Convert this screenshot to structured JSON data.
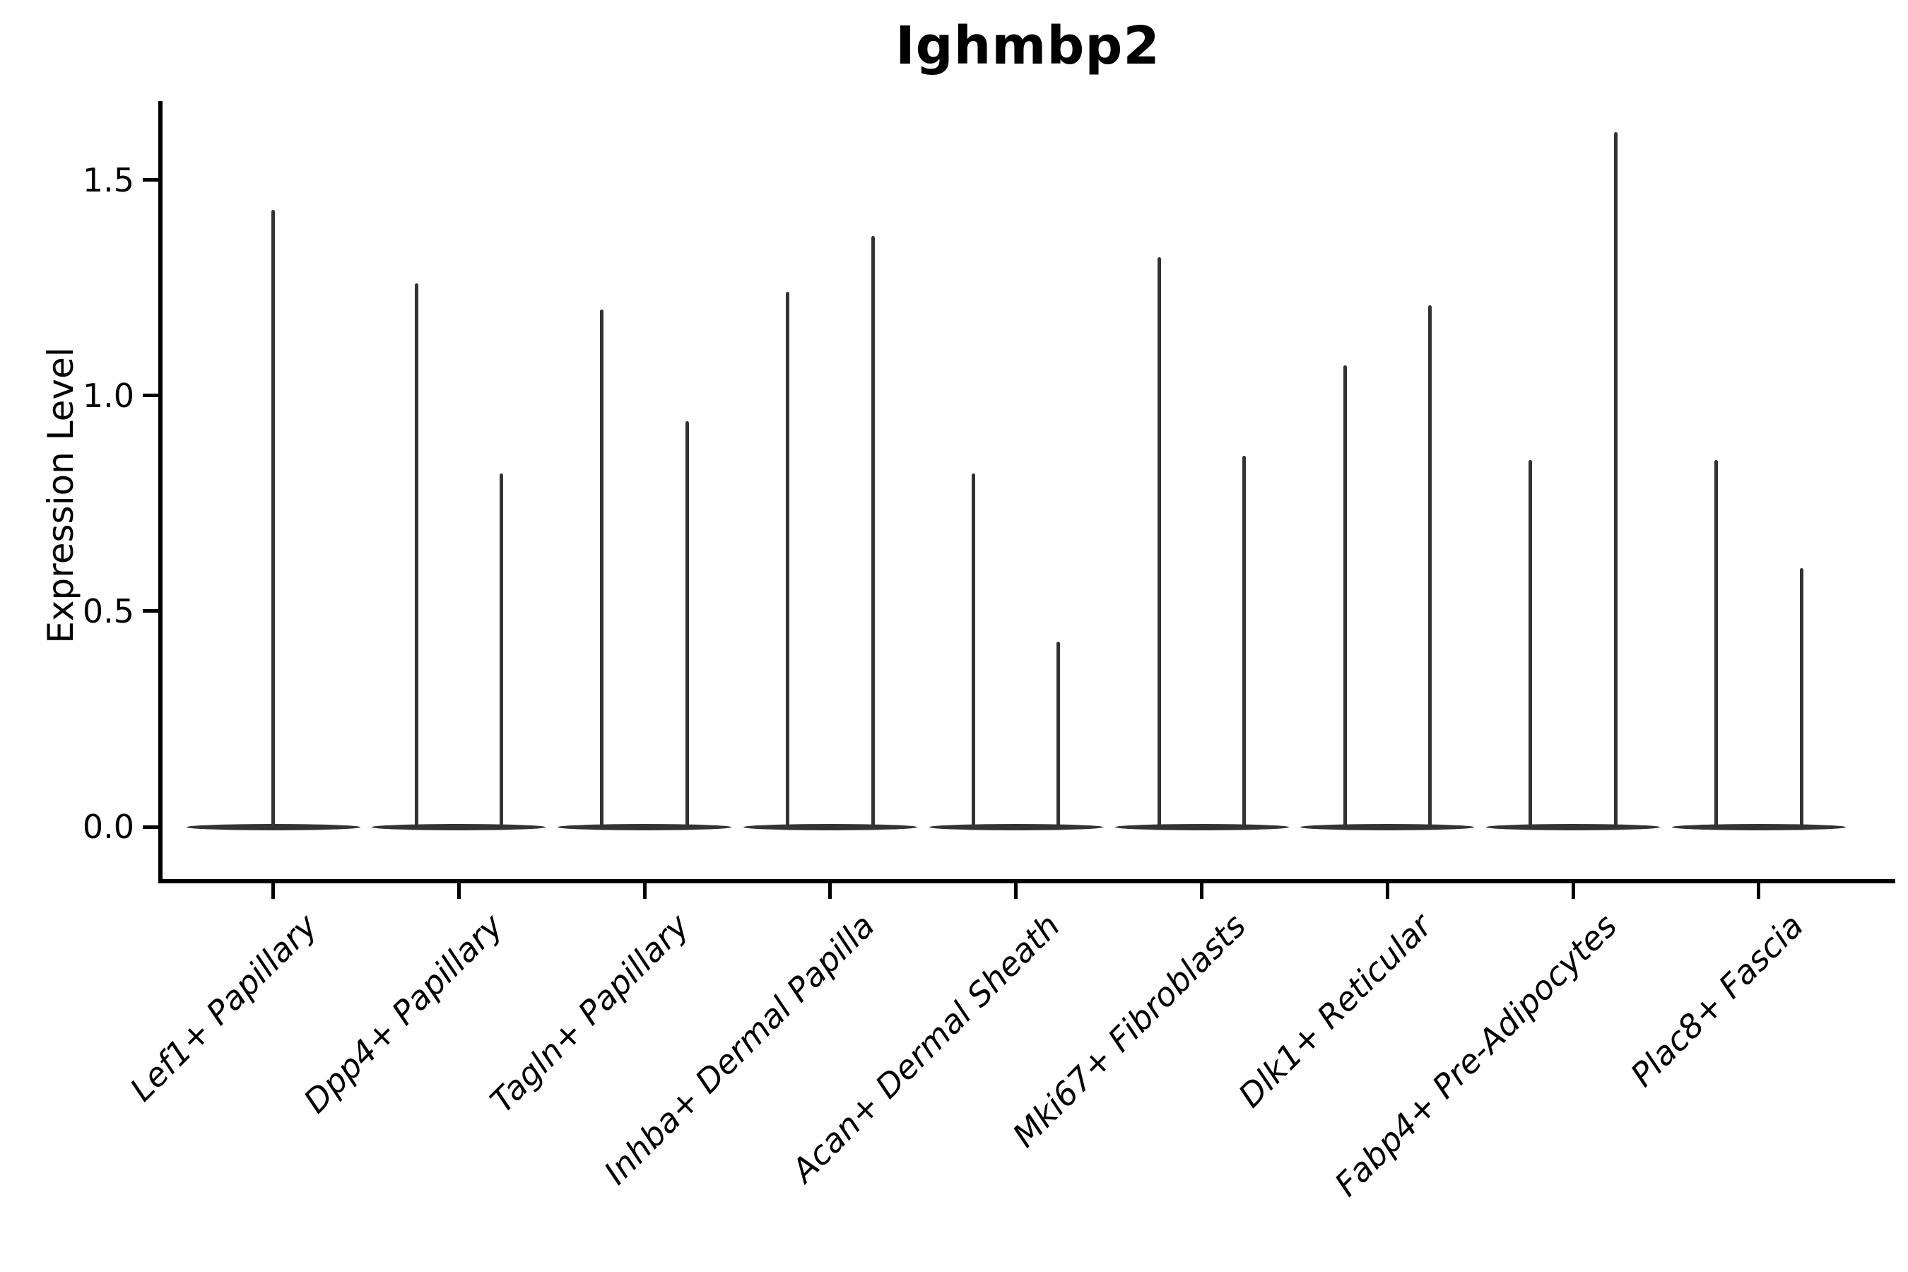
{
  "figure": {
    "title": "Ighmbp2"
  },
  "y_axis": {
    "label": "Expression Level",
    "tick_labels": [
      "0.0",
      "0.5",
      "1.0",
      "1.5"
    ]
  },
  "x_axis": {
    "tick_labels": [
      "Lef1+ Papillary",
      "Dpp4+ Papillary",
      "Tagln+ Papillary",
      "Inhba+ Dermal Papilla",
      "Acan+ Dermal Sheath",
      "Mki67+ Fibroblasts",
      "Dlk1+ Reticular",
      "Fabp4+ Pre-Adipocytes",
      "Plac8+ Fascia"
    ]
  },
  "chart_data": {
    "type": "violin",
    "title": "Ighmbp2",
    "xlabel": "",
    "ylabel": "Expression Level",
    "ylim": [
      0,
      1.69
    ],
    "yticks": [
      0.0,
      0.5,
      1.0,
      1.5
    ],
    "x_tick_rotation_deg": 45,
    "grid": false,
    "legend": "none",
    "style_note": "Seurat/scanpy-style gene expression violin plot: nearly all density concentrated at 0 giving a wide flat base at y=0, with extremely thin spikes rising to the maximum expression value of each violin",
    "categories": [
      "Lef1+ Papillary",
      "Dpp4+ Papillary",
      "Tagln+ Papillary",
      "Inhba+ Dermal Papilla",
      "Acan+ Dermal Sheath",
      "Mki67+ Fibroblasts",
      "Dlk1+ Reticular",
      "Fabp4+ Pre-Adipocytes",
      "Plac8+ Fascia"
    ],
    "series": [
      {
        "category": "Lef1+ Papillary",
        "violins": [
          {
            "position": "center",
            "mode": 0.0,
            "max_expression": 1.43
          }
        ]
      },
      {
        "category": "Dpp4+ Papillary",
        "violins": [
          {
            "position": "left",
            "mode": 0.0,
            "max_expression": 1.26
          },
          {
            "position": "right",
            "mode": 0.0,
            "max_expression": 0.82
          }
        ]
      },
      {
        "category": "Tagln+ Papillary",
        "violins": [
          {
            "position": "left",
            "mode": 0.0,
            "max_expression": 1.2
          },
          {
            "position": "right",
            "mode": 0.0,
            "max_expression": 0.94
          }
        ]
      },
      {
        "category": "Inhba+ Dermal Papilla",
        "violins": [
          {
            "position": "left",
            "mode": 0.0,
            "max_expression": 1.24
          },
          {
            "position": "right",
            "mode": 0.0,
            "max_expression": 1.37
          }
        ]
      },
      {
        "category": "Acan+ Dermal Sheath",
        "violins": [
          {
            "position": "left",
            "mode": 0.0,
            "max_expression": 0.82
          },
          {
            "position": "right",
            "mode": 0.0,
            "max_expression": 0.43
          }
        ]
      },
      {
        "category": "Mki67+ Fibroblasts",
        "violins": [
          {
            "position": "left",
            "mode": 0.0,
            "max_expression": 1.32
          },
          {
            "position": "right",
            "mode": 0.0,
            "max_expression": 0.86
          }
        ]
      },
      {
        "category": "Dlk1+ Reticular",
        "violins": [
          {
            "position": "left",
            "mode": 0.0,
            "max_expression": 1.07
          },
          {
            "position": "right",
            "mode": 0.0,
            "max_expression": 1.21
          }
        ]
      },
      {
        "category": "Fabp4+ Pre-Adipocytes",
        "violins": [
          {
            "position": "left",
            "mode": 0.0,
            "max_expression": 0.85
          },
          {
            "position": "right",
            "mode": 0.0,
            "max_expression": 1.61
          }
        ]
      },
      {
        "category": "Plac8+ Fascia",
        "violins": [
          {
            "position": "left",
            "mode": 0.0,
            "max_expression": 0.85
          },
          {
            "position": "right",
            "mode": 0.0,
            "max_expression": 0.6
          }
        ]
      }
    ],
    "colors": {
      "violin": "#333333",
      "axis": "#000000",
      "text": "#000000",
      "background": "#ffffff"
    }
  }
}
